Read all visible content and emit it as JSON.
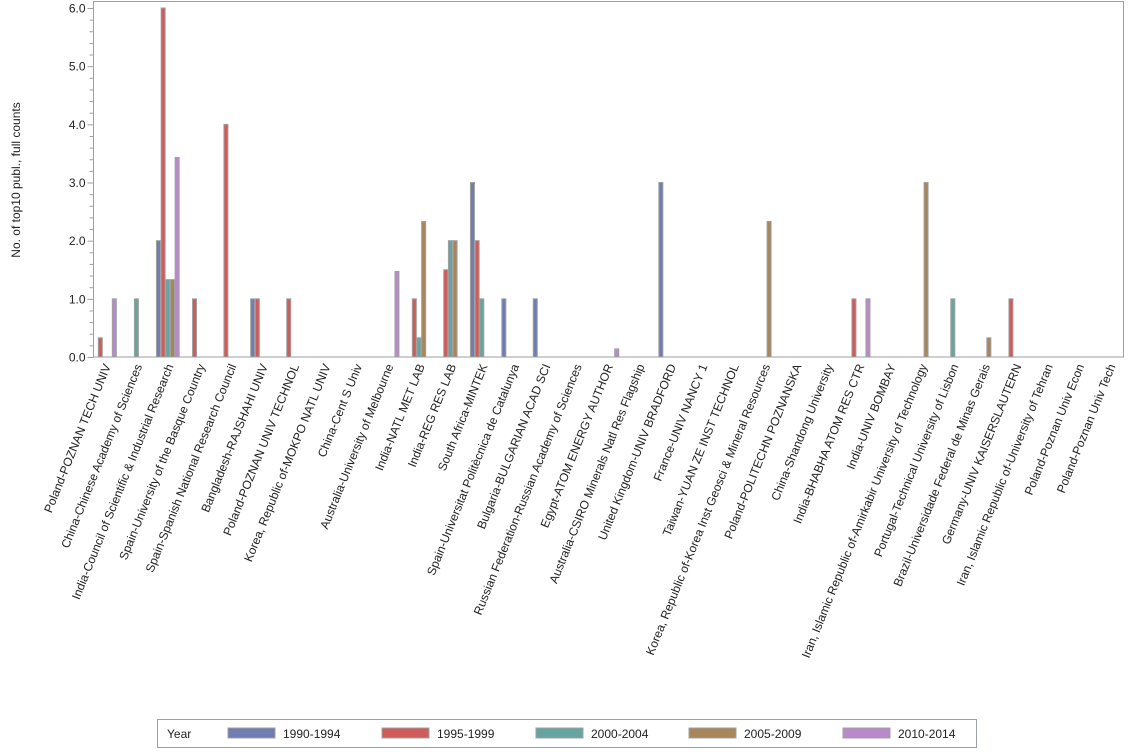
{
  "chart_data": {
    "type": "bar",
    "title": "",
    "xlabel": "",
    "ylabel": "No. of top10 publ., full counts",
    "ylim": [
      0,
      6
    ],
    "yticks": [
      "0.0",
      "1.0",
      "2.0",
      "3.0",
      "4.0",
      "5.0",
      "6.0"
    ],
    "grid": false,
    "legend_title": "Year",
    "legend_position": "bottom",
    "categories": [
      "Poland-POZNAN TECH UNIV",
      "China-Chinese Academy of Sciences",
      "India-Council of Scientific & Industrial Research",
      "Spain-University of the Basque Country",
      "Spain-Spanish National Research Council",
      "Bangladesh-RAJSHAHI UNIV",
      "Poland-POZNAN UNIV TECHNOL",
      "Korea, Republic of-MOKPO NATL UNIV",
      "China-Cent S Univ",
      "Australia-University of Melbourne",
      "India-NATL MET LAB",
      "India-REG RES LAB",
      "South Africa-MINTEK",
      "Spain-Universitat Politècnica de Catalunya",
      "Bulgaria-BULGARIAN ACAD SCI",
      "Russian Federation-Russian Academy of Sciences",
      "Egypt-ATOM ENERGY AUTHOR",
      "Australia-CSIRO Minerals Natl Res Flagship",
      "United Kingdom-UNIV BRADFORD",
      "France-UNIV NANCY 1",
      "Taiwan-YUAN ZE INST TECHNOL",
      "Korea, Republic of-Korea Inst Geosci & Mineral Resources",
      "Poland-POLITECHN POZNANSKA",
      "China-Shandong University",
      "India-BHABHA ATOM RES CTR",
      "India-UNIV BOMBAY",
      "Iran, Islamic Republic of-Amirkabir University of Technology",
      "Portugal-Technical University of Lisbon",
      "Brazil-Universidade Federal de Minas Gerais",
      "Germany-UNIV KAISERSLAUTERN",
      "Iran, Islamic Republic of-University of Tehran",
      "Poland-Poznan Univ Econ",
      "Poland-Poznan Univ Tech"
    ],
    "series": [
      {
        "name": "1990-1994",
        "color": "#6f7db3",
        "values": [
          0,
          0,
          2,
          0,
          0,
          1,
          0,
          0,
          0,
          0,
          0,
          0,
          3,
          1,
          1,
          0,
          0,
          0,
          3,
          0,
          0,
          0,
          0,
          0,
          0,
          0,
          0,
          0,
          0,
          0,
          0,
          0,
          0
        ]
      },
      {
        "name": "1995-1999",
        "color": "#d05b5b",
        "values": [
          0.33,
          0,
          6,
          1,
          4,
          1,
          1,
          0,
          0,
          0,
          1,
          1.5,
          2,
          0,
          0,
          0,
          0,
          0,
          0,
          0,
          0,
          0,
          0,
          0,
          1,
          0,
          0,
          0,
          0,
          1,
          0,
          0,
          0
        ]
      },
      {
        "name": "2000-2004",
        "color": "#66a59f",
        "values": [
          0,
          1,
          1.33,
          0,
          0,
          0,
          0,
          0,
          0,
          0,
          0.33,
          2,
          1,
          0,
          0,
          0,
          0,
          0,
          0,
          0,
          0,
          0,
          0,
          0,
          0,
          0,
          0,
          1,
          0,
          0,
          0,
          0,
          0
        ]
      },
      {
        "name": "2005-2009",
        "color": "#a8855b",
        "values": [
          0,
          0,
          1.33,
          0,
          0,
          0,
          0,
          0,
          0,
          0,
          2.33,
          2,
          0,
          0,
          0,
          0,
          0,
          0,
          0,
          0,
          0,
          2.33,
          0,
          0,
          0,
          0,
          3,
          0,
          0.33,
          0,
          0,
          0,
          0
        ]
      },
      {
        "name": "2010-2014",
        "color": "#b88ac9",
        "values": [
          1,
          0,
          3.43,
          0,
          0,
          0,
          0,
          0,
          0,
          1.47,
          0,
          0,
          0,
          0,
          0,
          0,
          0.14,
          0,
          0,
          0,
          0,
          0,
          0,
          0,
          1,
          0,
          0,
          0,
          0,
          0,
          0,
          0,
          0
        ]
      }
    ]
  }
}
